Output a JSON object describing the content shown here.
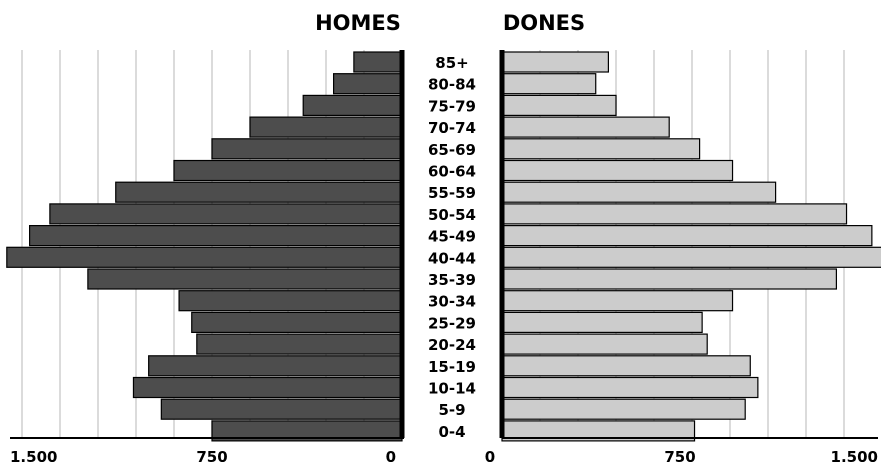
{
  "chart_data": {
    "type": "bar",
    "orientation": "horizontal",
    "layout": "population-pyramid",
    "categories": [
      "0-4",
      "5-9",
      "10-14",
      "15-19",
      "20-24",
      "25-29",
      "30-34",
      "35-39",
      "40-44",
      "45-49",
      "50-54",
      "55-59",
      "60-64",
      "65-69",
      "70-74",
      "75-79",
      "80-84",
      "85+"
    ],
    "series": [
      {
        "name": "HOMES",
        "color": "#4d4d4d",
        "values": [
          750,
          950,
          1060,
          1000,
          810,
          830,
          880,
          1240,
          1560,
          1470,
          1390,
          1130,
          900,
          750,
          600,
          390,
          270,
          190
        ]
      },
      {
        "name": "DONES",
        "color": "#cccccc",
        "values": [
          760,
          960,
          1010,
          980,
          810,
          790,
          910,
          1320,
          1590,
          1460,
          1360,
          1080,
          910,
          780,
          660,
          450,
          370,
          420
        ]
      }
    ],
    "x_ticks": [
      "1.500",
      "750",
      "0"
    ],
    "x_ticks_right": [
      "0",
      "750",
      "1.500"
    ],
    "xlim": [
      0,
      1600
    ],
    "grid": true
  }
}
